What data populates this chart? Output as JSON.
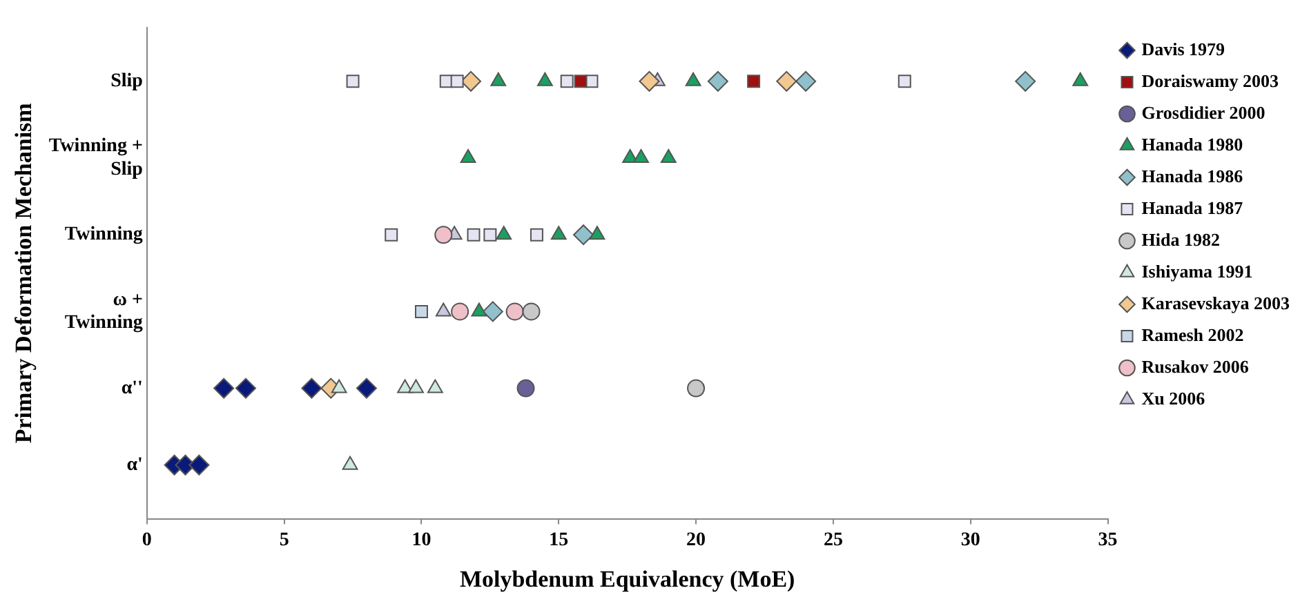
{
  "chart_data": {
    "type": "scatter",
    "orientation": "horizontal",
    "xlabel": "Molybdenum Equivalency (MoE)",
    "ylabel": "Primary Deformation Mechanism",
    "categories": [
      "Slip",
      "Twinning + Slip",
      "Twinning",
      "ω + Twinning",
      "α''",
      "α'"
    ],
    "xlim": [
      0,
      35
    ],
    "xticks": [
      0,
      5,
      10,
      15,
      20,
      25,
      30,
      35
    ],
    "grid": false,
    "legend": "right",
    "series": [
      {
        "name": "Davis 1979",
        "color": "#0a1a7a",
        "marker": "diamond",
        "x": [
          "α''",
          "α''",
          "α''",
          "α''",
          "α'",
          "α'",
          "α'"
        ],
        "values": [
          2.8,
          3.6,
          6.0,
          8.0,
          1.0,
          1.4,
          1.9
        ]
      },
      {
        "name": "Doraiswamy 2003",
        "color": "#a01010",
        "marker": "square",
        "x": [
          "Slip",
          "Slip"
        ],
        "values": [
          15.8,
          22.1
        ]
      },
      {
        "name": "Grosdidier 2000",
        "color": "#6a6098",
        "marker": "circle",
        "x": [
          "α''"
        ],
        "values": [
          13.8
        ]
      },
      {
        "name": "Hanada 1980",
        "color": "#1aa060",
        "marker": "triangle",
        "x": [
          "Slip",
          "Slip",
          "Slip",
          "Slip",
          "Twinning + Slip",
          "Twinning + Slip",
          "Twinning + Slip",
          "Twinning + Slip",
          "Twinning",
          "Twinning",
          "Twinning",
          "ω + Twinning"
        ],
        "values": [
          12.8,
          14.5,
          19.9,
          34.0,
          11.7,
          17.6,
          18.0,
          19.0,
          13.0,
          15.0,
          16.4,
          12.1
        ]
      },
      {
        "name": "Hanada 1986",
        "color": "#90c0cc",
        "marker": "diamond",
        "x": [
          "Slip",
          "Slip",
          "Slip",
          "Twinning",
          "ω + Twinning"
        ],
        "values": [
          20.8,
          24.0,
          32.0,
          15.9,
          12.6
        ]
      },
      {
        "name": "Hanada 1987",
        "color": "#e4e4f2",
        "marker": "square",
        "x": [
          "Slip",
          "Slip",
          "Slip",
          "Slip",
          "Slip",
          "Slip",
          "Twinning",
          "Twinning",
          "Twinning",
          "Twinning"
        ],
        "values": [
          7.5,
          10.9,
          11.3,
          15.3,
          16.2,
          27.6,
          8.9,
          11.9,
          12.5,
          14.2
        ]
      },
      {
        "name": "Hida 1982",
        "color": "#c8c8c8",
        "marker": "circle",
        "x": [
          "ω + Twinning",
          "α''"
        ],
        "values": [
          14.0,
          20.0
        ]
      },
      {
        "name": "Ishiyama 1991",
        "color": "#d0e8e0",
        "marker": "triangle",
        "x": [
          "α''",
          "α''",
          "α''",
          "α''",
          "α'"
        ],
        "values": [
          7.0,
          9.4,
          9.8,
          10.5,
          7.4
        ]
      },
      {
        "name": "Karasevskaya 2003",
        "color": "#f0c890",
        "marker": "diamond",
        "x": [
          "Slip",
          "Slip",
          "Slip",
          "α''"
        ],
        "values": [
          11.8,
          18.3,
          23.3,
          6.7
        ]
      },
      {
        "name": "Ramesh 2002",
        "color": "#c8d8e8",
        "marker": "square",
        "x": [
          "ω + Twinning"
        ],
        "values": [
          10.0
        ]
      },
      {
        "name": "Rusakov 2006",
        "color": "#f0c0c8",
        "marker": "circle",
        "x": [
          "Twinning",
          "ω + Twinning",
          "ω + Twinning"
        ],
        "values": [
          10.8,
          11.4,
          13.4
        ]
      },
      {
        "name": "Xu 2006",
        "color": "#c8c8e0",
        "marker": "triangle",
        "x": [
          "Slip",
          "Twinning",
          "ω + Twinning"
        ],
        "values": [
          18.6,
          11.2,
          10.8
        ]
      }
    ]
  }
}
